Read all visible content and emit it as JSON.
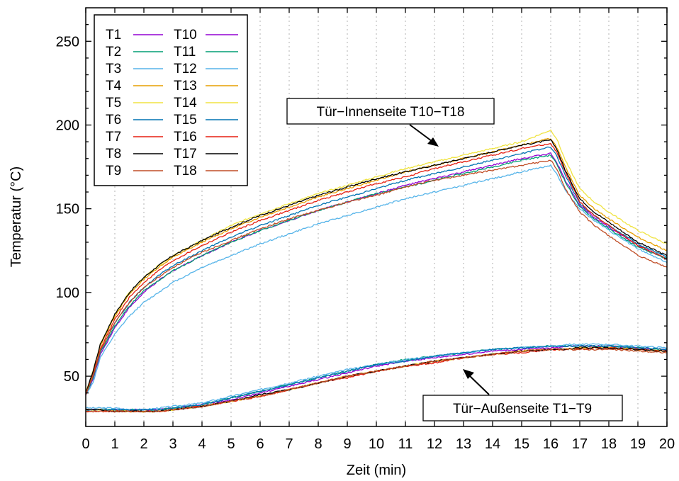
{
  "chart_data": {
    "type": "line",
    "title": "",
    "xlabel": "Zeit (min)",
    "ylabel": "Temperatur (°C)",
    "xlim": [
      0,
      20
    ],
    "ylim": [
      20,
      270
    ],
    "xticks": [
      0,
      1,
      2,
      3,
      4,
      5,
      6,
      7,
      8,
      9,
      10,
      11,
      12,
      13,
      14,
      15,
      16,
      17,
      18,
      19,
      20
    ],
    "yticks": [
      50,
      100,
      150,
      200,
      250
    ],
    "grid": "vertical dotted",
    "legend_position": "top-left",
    "annotations": [
      {
        "text": "Tür−Innenseite T10−T18"
      },
      {
        "text": "Tür−Außenseite T1−T9"
      }
    ],
    "x": [
      0,
      0.25,
      0.5,
      1,
      1.5,
      2,
      2.5,
      3,
      4,
      5,
      6,
      7,
      8,
      9,
      10,
      11,
      12,
      13,
      14,
      15,
      16,
      16.2,
      16.5,
      17,
      17.5,
      18,
      19,
      20
    ],
    "series": [
      {
        "name": "T1",
        "color": "#9400d3",
        "values": [
          30,
          30,
          30,
          30,
          30,
          30,
          30,
          31,
          33,
          36,
          40,
          44,
          48,
          52,
          56,
          59,
          61,
          63,
          65,
          66,
          67,
          67,
          68,
          68,
          68,
          68,
          67,
          66
        ]
      },
      {
        "name": "T2",
        "color": "#009e73",
        "values": [
          30,
          30,
          30,
          30,
          30,
          30,
          30,
          31,
          33,
          37,
          41,
          45,
          49,
          53,
          57,
          60,
          62,
          64,
          66,
          67,
          68,
          68,
          68,
          68,
          68,
          68,
          67,
          66
        ]
      },
      {
        "name": "T3",
        "color": "#56b4e9",
        "values": [
          31,
          31,
          31,
          31,
          30,
          30,
          31,
          32,
          34,
          38,
          42,
          46,
          50,
          54,
          57,
          60,
          62,
          64,
          66,
          67,
          68,
          68,
          69,
          69,
          69,
          69,
          68,
          67
        ]
      },
      {
        "name": "T4",
        "color": "#e69f00",
        "values": [
          30,
          30,
          30,
          29,
          29,
          29,
          29,
          30,
          32,
          35,
          38,
          42,
          46,
          50,
          53,
          56,
          59,
          61,
          63,
          65,
          66,
          66,
          66,
          67,
          67,
          67,
          66,
          65
        ]
      },
      {
        "name": "T5",
        "color": "#f0e442",
        "values": [
          30,
          30,
          30,
          29,
          29,
          29,
          29,
          30,
          32,
          35,
          38,
          42,
          46,
          50,
          53,
          56,
          59,
          61,
          63,
          65,
          66,
          66,
          66,
          67,
          67,
          67,
          66,
          65
        ]
      },
      {
        "name": "T6",
        "color": "#0072b2",
        "values": [
          30,
          30,
          30,
          30,
          30,
          30,
          30,
          31,
          33,
          37,
          41,
          45,
          49,
          53,
          57,
          59,
          62,
          64,
          66,
          67,
          68,
          68,
          68,
          68,
          68,
          68,
          67,
          66
        ]
      },
      {
        "name": "T7",
        "color": "#e51e10",
        "values": [
          29,
          29,
          29,
          29,
          29,
          29,
          29,
          30,
          32,
          35,
          38,
          42,
          46,
          49,
          53,
          56,
          58,
          61,
          63,
          64,
          66,
          66,
          66,
          66,
          67,
          67,
          66,
          65
        ]
      },
      {
        "name": "T8",
        "color": "#000000",
        "values": [
          30,
          30,
          30,
          29,
          29,
          29,
          29,
          30,
          32,
          35,
          39,
          42,
          46,
          50,
          53,
          56,
          59,
          61,
          63,
          65,
          66,
          66,
          66,
          67,
          67,
          67,
          66,
          65
        ]
      },
      {
        "name": "T9",
        "color": "#c04d26",
        "values": [
          29,
          29,
          29,
          29,
          29,
          29,
          29,
          30,
          32,
          35,
          38,
          42,
          46,
          50,
          53,
          56,
          59,
          61,
          63,
          65,
          66,
          66,
          66,
          66,
          66,
          66,
          65,
          64
        ]
      },
      {
        "name": "T10",
        "color": "#9400d3",
        "values": [
          39,
          48,
          63,
          79,
          91,
          100,
          107,
          113,
          122,
          130,
          137,
          143,
          149,
          154,
          159,
          164,
          168,
          172,
          176,
          180,
          183,
          178,
          167,
          152,
          145,
          139,
          128,
          120
        ]
      },
      {
        "name": "T11",
        "color": "#009e73",
        "values": [
          39,
          49,
          64,
          80,
          92,
          101,
          107,
          113,
          122,
          130,
          137,
          143,
          149,
          154,
          159,
          163,
          167,
          171,
          175,
          179,
          182,
          177,
          166,
          151,
          144,
          138,
          127,
          120
        ]
      },
      {
        "name": "T12",
        "color": "#56b4e9",
        "values": [
          39,
          46,
          61,
          75,
          86,
          94,
          100,
          106,
          115,
          122,
          129,
          135,
          141,
          146,
          151,
          156,
          160,
          164,
          168,
          172,
          176,
          171,
          161,
          150,
          143,
          137,
          126,
          118
        ]
      },
      {
        "name": "T13",
        "color": "#e69f00",
        "values": [
          40,
          53,
          68,
          86,
          99,
          108,
          115,
          121,
          130,
          138,
          145,
          151,
          157,
          162,
          167,
          172,
          176,
          180,
          184,
          188,
          192,
          187,
          175,
          158,
          150,
          144,
          133,
          125
        ]
      },
      {
        "name": "T14",
        "color": "#f0e442",
        "values": [
          40,
          53,
          69,
          87,
          100,
          109,
          116,
          122,
          131,
          140,
          147,
          153,
          159,
          164,
          169,
          174,
          178,
          182,
          186,
          190,
          197,
          192,
          179,
          162,
          154,
          148,
          137,
          129
        ]
      },
      {
        "name": "T15",
        "color": "#0072b2",
        "values": [
          39,
          50,
          65,
          82,
          94,
          103,
          110,
          116,
          125,
          133,
          140,
          146,
          152,
          157,
          162,
          167,
          171,
          175,
          179,
          183,
          187,
          182,
          170,
          153,
          146,
          140,
          129,
          121
        ]
      },
      {
        "name": "T16",
        "color": "#e51e10",
        "values": [
          39,
          51,
          66,
          84,
          97,
          106,
          113,
          119,
          128,
          136,
          143,
          149,
          155,
          160,
          165,
          169,
          174,
          178,
          182,
          186,
          189,
          184,
          172,
          154,
          146,
          140,
          128,
          120
        ]
      },
      {
        "name": "T17",
        "color": "#000000",
        "values": [
          40,
          53,
          69,
          87,
          100,
          109,
          116,
          122,
          131,
          139,
          146,
          152,
          158,
          163,
          168,
          172,
          176,
          180,
          184,
          188,
          191,
          186,
          173,
          156,
          148,
          142,
          130,
          122
        ]
      },
      {
        "name": "T18",
        "color": "#c04d26",
        "values": [
          39,
          50,
          65,
          82,
          94,
          103,
          109,
          115,
          124,
          131,
          138,
          144,
          149,
          154,
          158,
          163,
          167,
          170,
          173,
          176,
          179,
          174,
          162,
          148,
          140,
          134,
          122,
          115
        ]
      }
    ]
  }
}
